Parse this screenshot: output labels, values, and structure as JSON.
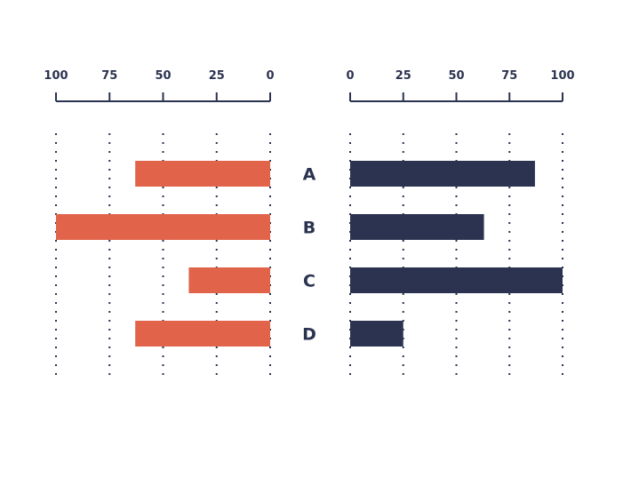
{
  "chart_data": {
    "type": "bar",
    "orientation": "horizontal",
    "layout": "butterfly",
    "categories": [
      "A",
      "B",
      "C",
      "D"
    ],
    "series": [
      {
        "side": "left",
        "color": "#e0634a",
        "values": [
          63,
          100,
          38,
          63
        ]
      },
      {
        "side": "right",
        "color": "#2b3350",
        "values": [
          87,
          63,
          100,
          25
        ]
      }
    ],
    "left_axis": {
      "ticks": [
        100,
        75,
        50,
        25,
        0
      ],
      "range": [
        100,
        0
      ]
    },
    "right_axis": {
      "ticks": [
        0,
        25,
        50,
        75,
        100
      ],
      "range": [
        0,
        100
      ]
    },
    "grid": "dotted vertical",
    "axis_color": "#2b3350"
  }
}
